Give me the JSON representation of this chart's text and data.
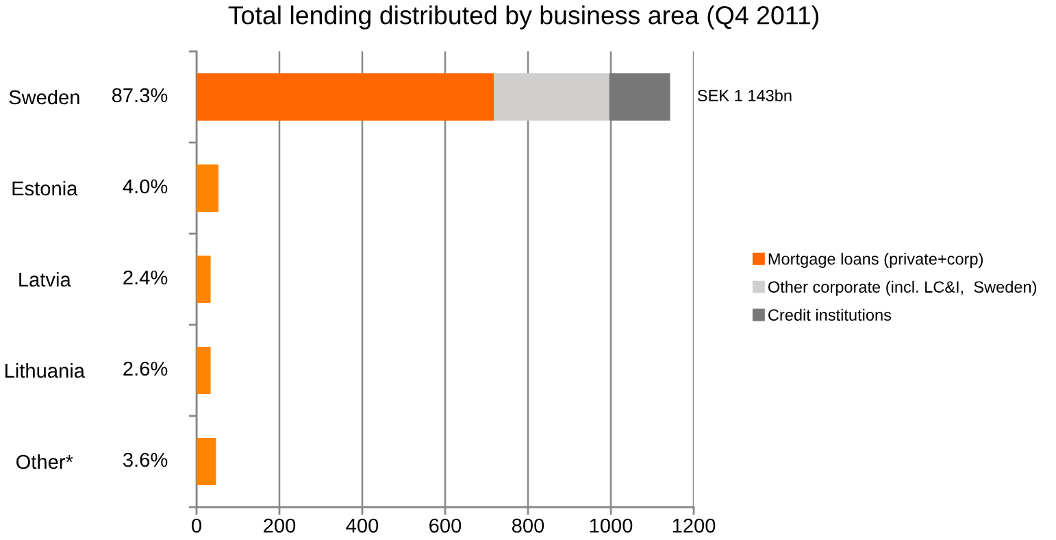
{
  "chart_data": {
    "type": "bar",
    "orientation": "horizontal",
    "stacked": true,
    "title": "Total lending distributed by business area (Q4 2011)",
    "categories": [
      "Sweden",
      "Estonia",
      "Latvia",
      "Lithuania",
      "Other*"
    ],
    "series": [
      {
        "name": "Mortgage loans (private+corp)",
        "color": "#ff6600",
        "colors": [
          "#ff6600",
          "#ff8400",
          "#ff8400",
          "#ff8400",
          "#ff8400"
        ],
        "values": [
          718,
          53,
          34,
          34,
          47
        ]
      },
      {
        "name": "Other corporate (incl. LC&I,  Sweden)",
        "color": "#d0cfcd",
        "values": [
          278,
          null,
          null,
          null,
          null
        ]
      },
      {
        "name": "Credit institutions",
        "color": "#777777",
        "values": [
          147,
          null,
          null,
          null,
          null
        ]
      }
    ],
    "totals": [
      "SEK 1 143bn",
      null,
      null,
      null,
      null
    ],
    "annotations": [
      "87.3%",
      "4.0%",
      "2.4%",
      "2.6%",
      "3.6%"
    ],
    "xlim": [
      0,
      1200
    ],
    "xticks": [
      0,
      200,
      400,
      600,
      800,
      1000,
      1200
    ],
    "grid": "x",
    "legend": "right"
  }
}
